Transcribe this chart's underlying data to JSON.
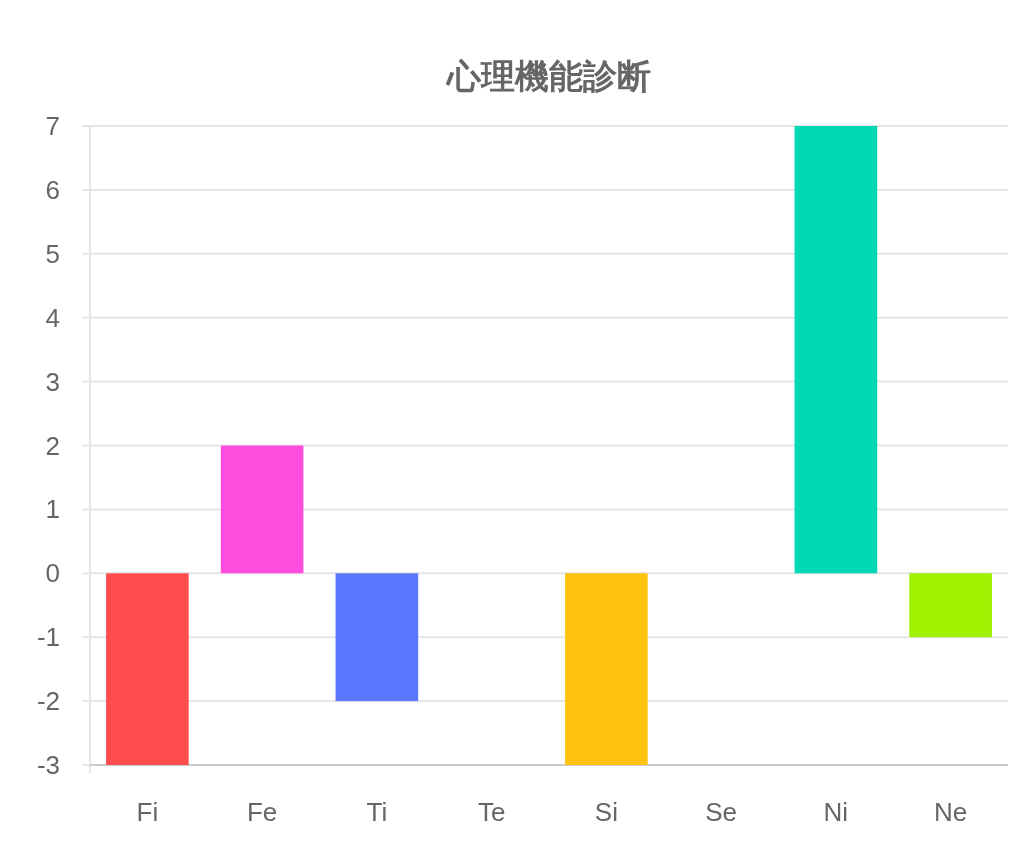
{
  "chart_data": {
    "type": "bar",
    "title": "心理機能診断",
    "categories": [
      "Fi",
      "Fe",
      "Ti",
      "Te",
      "Si",
      "Se",
      "Ni",
      "Ne"
    ],
    "values": [
      -3,
      2,
      -2,
      0,
      -3,
      0,
      7,
      -1
    ],
    "colors": [
      "#ff4d4d",
      "#ff4de0",
      "#5b76ff",
      "#8a5bff",
      "#ffc20f",
      "#ff8a2a",
      "#00d9b4",
      "#a0f000"
    ],
    "ylim": [
      -3,
      7
    ],
    "yticks": [
      -3,
      -2,
      -1,
      0,
      1,
      2,
      3,
      4,
      5,
      6,
      7
    ],
    "grid": "y"
  }
}
